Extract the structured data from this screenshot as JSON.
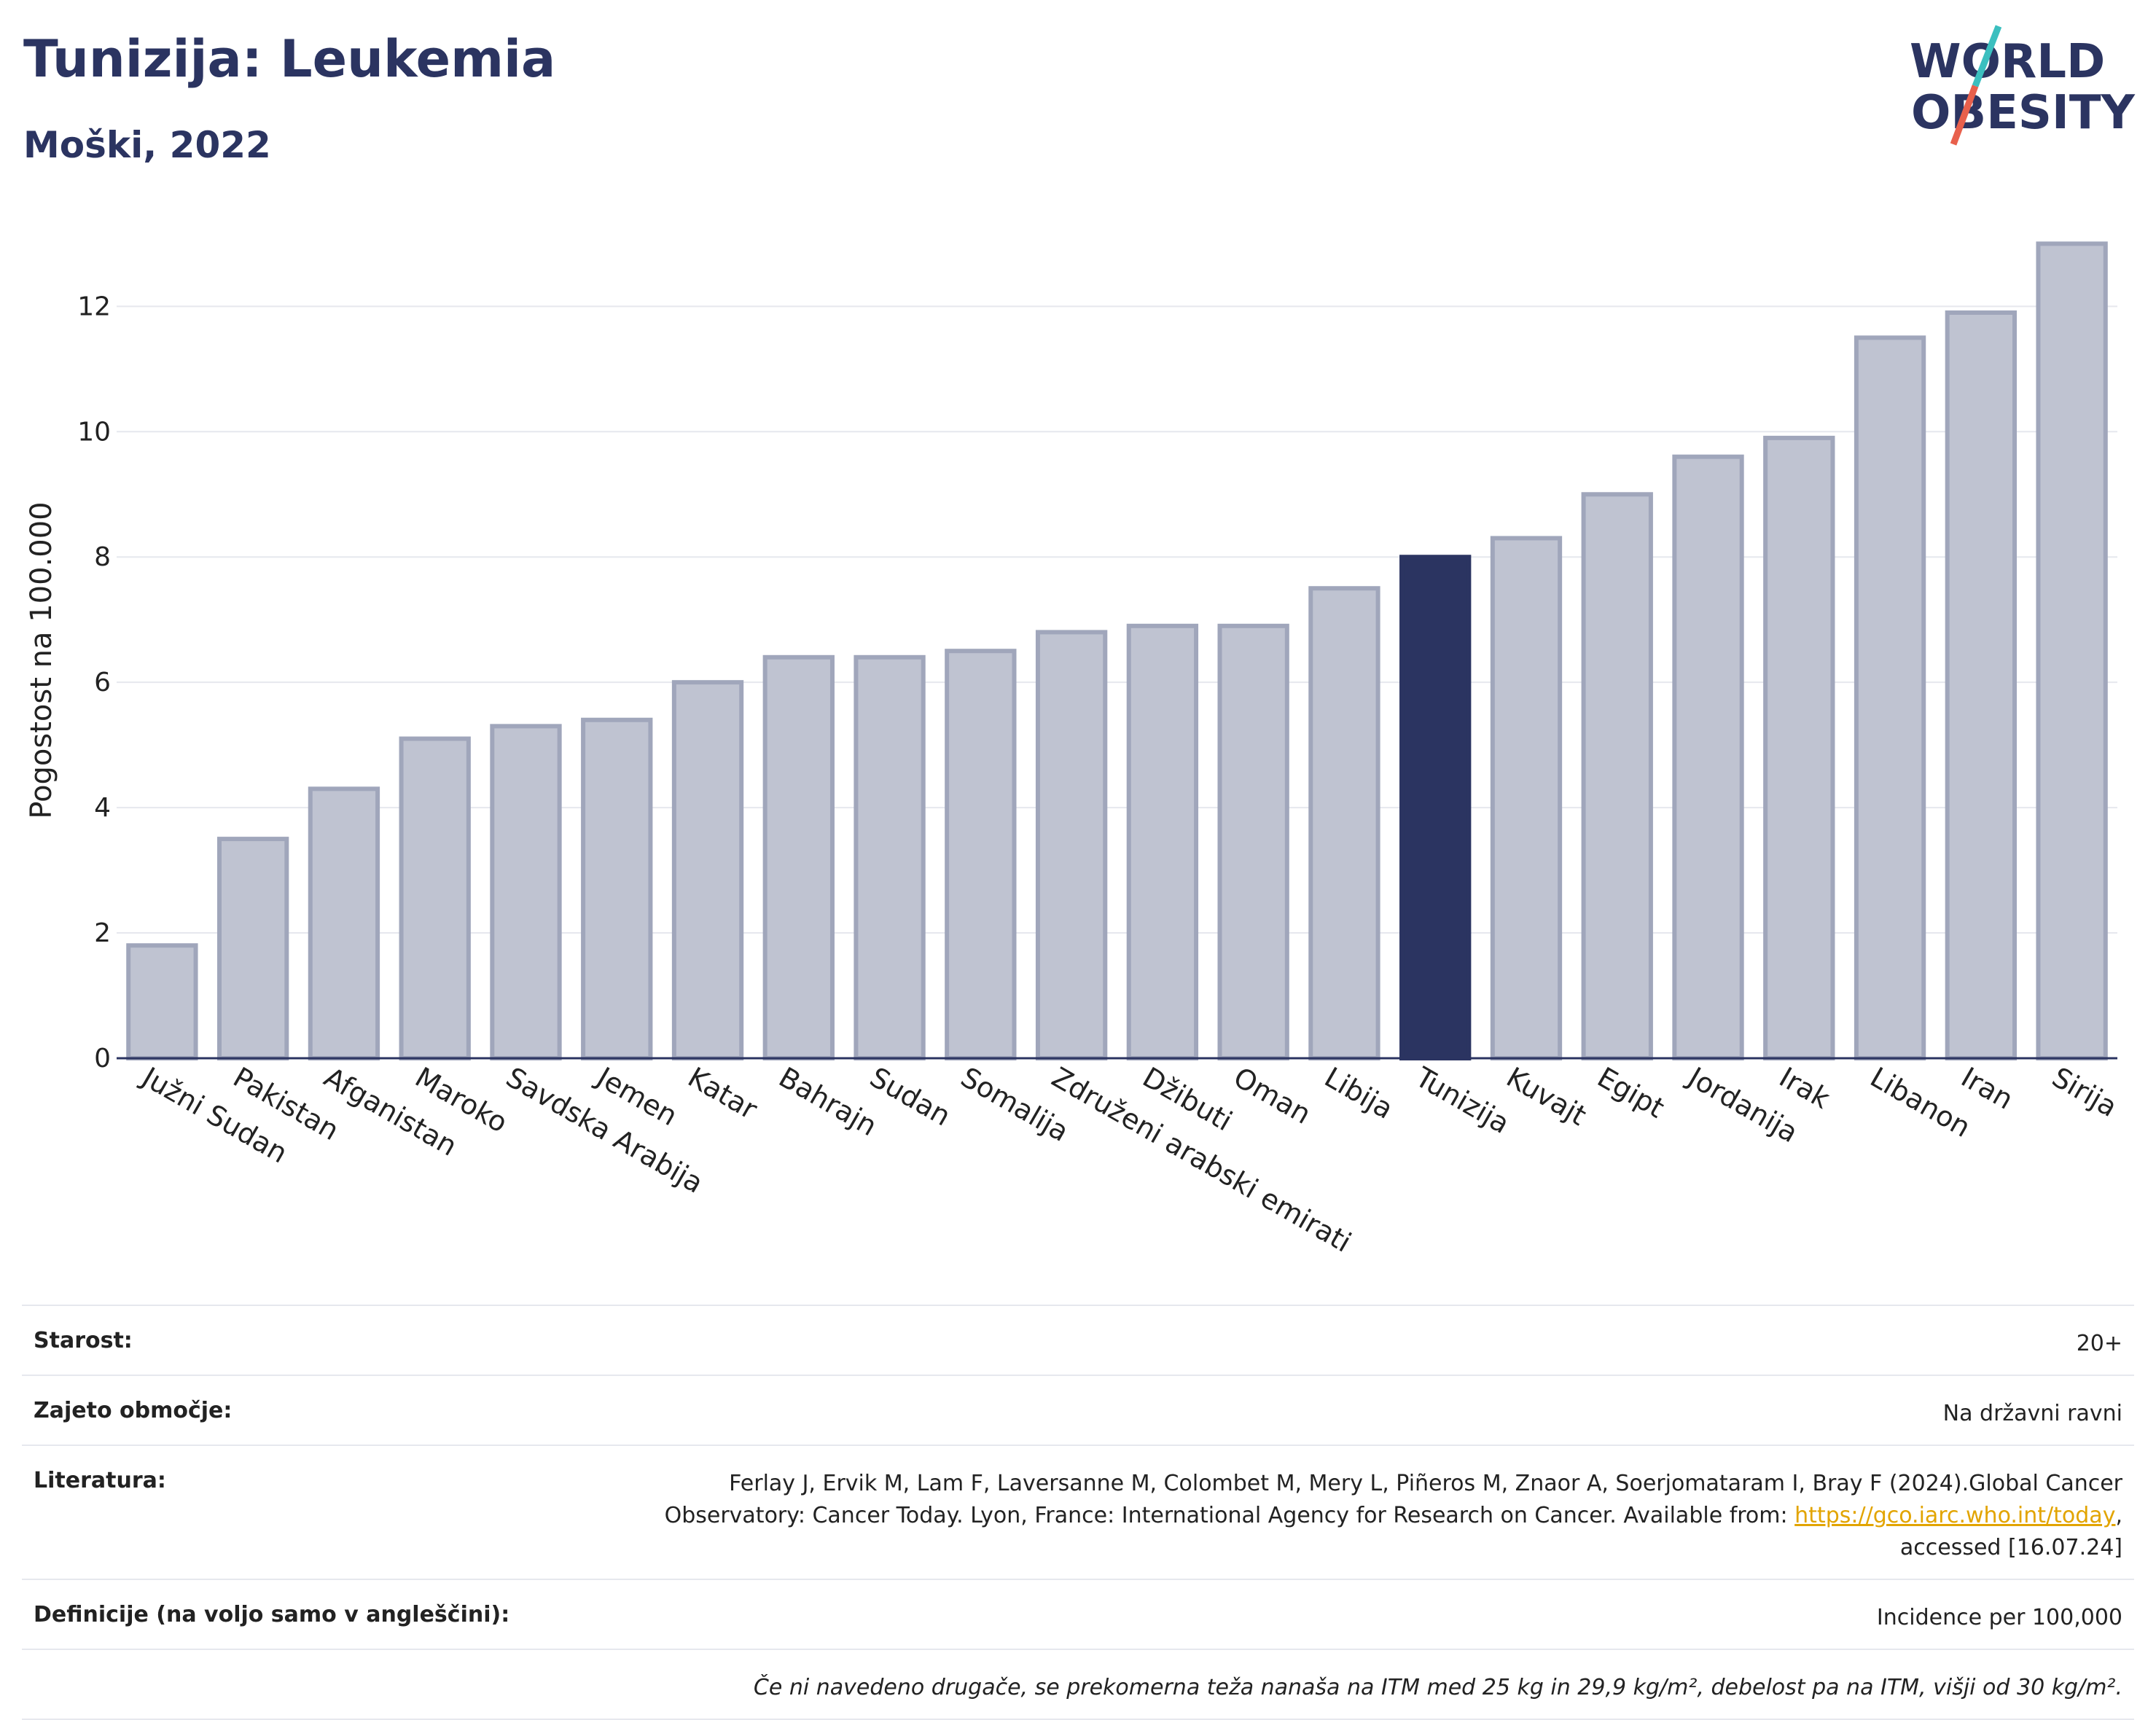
{
  "header": {
    "title": "Tunizija: Leukemia",
    "subtitle": "Moški, 2022"
  },
  "logo": {
    "line1": "WORLD",
    "line2": "OBESITY",
    "slash_colors": [
      "#3bbfbf",
      "#e8604c"
    ]
  },
  "colors": {
    "bar": "#bfc3d1",
    "bar_outline": "#a0a6bb",
    "highlight": "#2b3461",
    "text": "#222222",
    "grid": "#e6e8ee"
  },
  "chart_data": {
    "type": "bar",
    "title": "Tunizija: Leukemia",
    "ylabel": "Pogostost na 100.000",
    "xlabel": "",
    "ylim": [
      0,
      13.4
    ],
    "yticks": [
      0,
      2,
      4,
      6,
      8,
      10,
      12
    ],
    "grid": true,
    "highlight": "Tunizija",
    "categories": [
      "Južni Sudan",
      "Pakistan",
      "Afganistan",
      "Maroko",
      "Savdska Arabija",
      "Jemen",
      "Katar",
      "Bahrajn",
      "Sudan",
      "Somalija",
      "Združeni arabski emirati",
      "Džibuti",
      "Oman",
      "Libija",
      "Tunizija",
      "Kuvajt",
      "Egipt",
      "Jordanija",
      "Irak",
      "Libanon",
      "Iran",
      "Sirija"
    ],
    "values": [
      1.8,
      3.5,
      4.3,
      5.1,
      5.3,
      5.4,
      6.0,
      6.4,
      6.4,
      6.5,
      6.8,
      6.9,
      6.9,
      7.5,
      8.0,
      8.3,
      9.0,
      9.6,
      9.9,
      11.5,
      11.9,
      13.0
    ]
  },
  "meta": {
    "age_label": "Starost:",
    "age_value": "20+",
    "coverage_label": "Zajeto območje:",
    "coverage_value": "Na državni ravni",
    "literature_label": "Literatura:",
    "literature_text": "Ferlay J, Ervik M, Lam F, Laversanne M, Colombet M, Mery L, Piñeros M, Znaor A, Soerjomataram I, Bray F (2024).Global Cancer Observatory: Cancer Today. Lyon, France: International Agency for Research on Cancer. Available from: ",
    "literature_link": "https://gco.iarc.who.int/today",
    "literature_suffix": ", accessed [16.07.24]",
    "definitions_label": "Definicije (na voljo samo v angleščini):",
    "definitions_value": "Incidence per 100,000",
    "note": "Če ni navedeno drugače, se prekomerna teža nanaša na ITM med 25 kg in 29,9 kg/m², debelost pa na ITM, višji od 30 kg/m²."
  }
}
